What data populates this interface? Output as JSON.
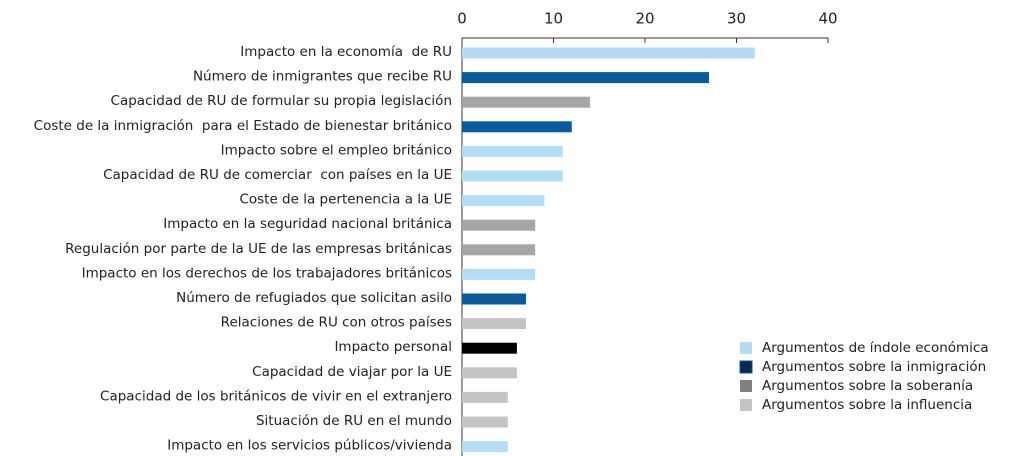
{
  "chart_data": {
    "type": "barh",
    "categories": [
      "Impacto en la economía  de RU",
      "Número de inmigrantes que recibe RU",
      "Capacidad de RU de formular su propia legislación",
      "Coste de la inmigración  para el Estado de bienestar británico",
      "Impacto sobre el empleo británico",
      "Capacidad de RU de comerciar  con países en la UE",
      "Coste de la pertenencia a la UE",
      "Impacto en la seguridad nacional británica",
      "Regulación por parte de la UE de las empresas británicas",
      "Impacto en los derechos de los trabajadores británicos",
      "Número de refugiados que solicitan asilo",
      "Relaciones de RU con otros países",
      "Impacto personal",
      "Capacidad de viajar por la UE",
      "Capacidad de los británicos de vivir en el extranjero",
      "Situación de RU en el mundo",
      "Impacto en los servicios públicos/vivienda"
    ],
    "values": [
      32,
      27,
      14,
      12,
      11,
      11,
      9,
      8,
      8,
      8,
      7,
      7,
      6,
      6,
      5,
      5,
      5
    ],
    "colors": [
      "#b5dcf7",
      "#0b5a9c",
      "#a6a6a6",
      "#0b5a9c",
      "#b5dcf7",
      "#b5dcf7",
      "#b5dcf7",
      "#a6a6a6",
      "#a6a6a6",
      "#b5dcf7",
      "#0b5a9c",
      "#c4c4c4",
      "#000000",
      "#c4c4c4",
      "#c4c4c4",
      "#c4c4c4",
      "#b5dcf7"
    ],
    "xlim": [
      0,
      40
    ],
    "xticks": [
      0,
      10,
      20,
      30,
      40
    ],
    "legend": [
      {
        "name": "Argumentos de índole económica",
        "color": "#b5dcf7"
      },
      {
        "name": "Argumentos sobre la inmigración",
        "color": "#0a2750"
      },
      {
        "name": "Argumentos sobre la soberanía",
        "color": "#808080"
      },
      {
        "name": "Argumentos sobre la influencia",
        "color": "#c4c4c4"
      }
    ]
  }
}
